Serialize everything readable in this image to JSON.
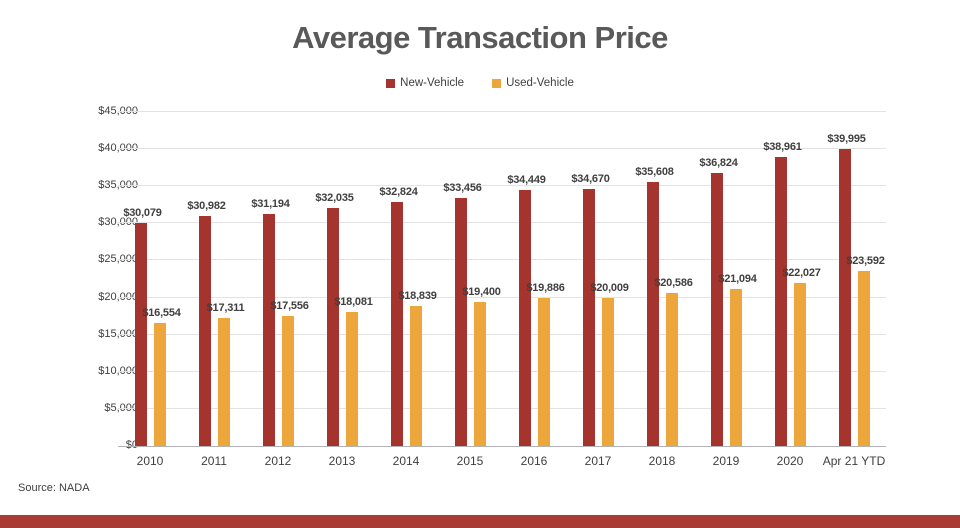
{
  "slide": {
    "title": "Average Transaction Price",
    "source_note": "Source: NADA"
  },
  "legend": [
    {
      "label": "New-Vehicle",
      "color": "#A5342E"
    },
    {
      "label": "Used-Vehicle",
      "color": "#EDA63C"
    }
  ],
  "colors": {
    "new_vehicle": "#A5342E",
    "used_vehicle": "#EDA63C",
    "bottom_band": "#A83B34",
    "title_text": "#595959",
    "gridline": "#e3e3e3"
  },
  "chart_data": {
    "type": "bar",
    "title": "Average Transaction Price",
    "categories": [
      "2010",
      "2011",
      "2012",
      "2013",
      "2014",
      "2015",
      "2016",
      "2017",
      "2018",
      "2019",
      "2020",
      "Apr 21 YTD"
    ],
    "series": [
      {
        "name": "New-Vehicle",
        "color": "#A5342E",
        "values": [
          30079,
          30982,
          31194,
          32035,
          32824,
          33456,
          34449,
          34670,
          35608,
          36824,
          38961,
          39995
        ],
        "labels": [
          "$30,079",
          "$30,982",
          "$31,194",
          "$32,035",
          "$32,824",
          "$33,456",
          "$34,449",
          "$34,670",
          "$35,608",
          "$36,824",
          "$38,961",
          "$39,995"
        ]
      },
      {
        "name": "Used-Vehicle",
        "color": "#EDA63C",
        "values": [
          16554,
          17311,
          17556,
          18081,
          18839,
          19400,
          19886,
          20009,
          20586,
          21094,
          22027,
          23592
        ],
        "labels": [
          "$16,554",
          "$17,311",
          "$17,556",
          "$18,081",
          "$18,839",
          "$19,400",
          "$19,886",
          "$20,009",
          "$20,586",
          "$21,094",
          "$22,027",
          "$23,592"
        ]
      }
    ],
    "xlabel": "",
    "ylabel": "",
    "ylim": [
      0,
      45000
    ],
    "grid": true,
    "legend_position": "top",
    "y_ticks": [
      {
        "value": 0,
        "label": "$0"
      },
      {
        "value": 5000,
        "label": "$5,000"
      },
      {
        "value": 10000,
        "label": "$10,000"
      },
      {
        "value": 15000,
        "label": "$15,000"
      },
      {
        "value": 20000,
        "label": "$20,000"
      },
      {
        "value": 25000,
        "label": "$25,000"
      },
      {
        "value": 30000,
        "label": "$30,000"
      },
      {
        "value": 35000,
        "label": "$35,000"
      },
      {
        "value": 40000,
        "label": "$40,000"
      },
      {
        "value": 45000,
        "label": "$45,000"
      }
    ],
    "source": "Source: NADA"
  }
}
